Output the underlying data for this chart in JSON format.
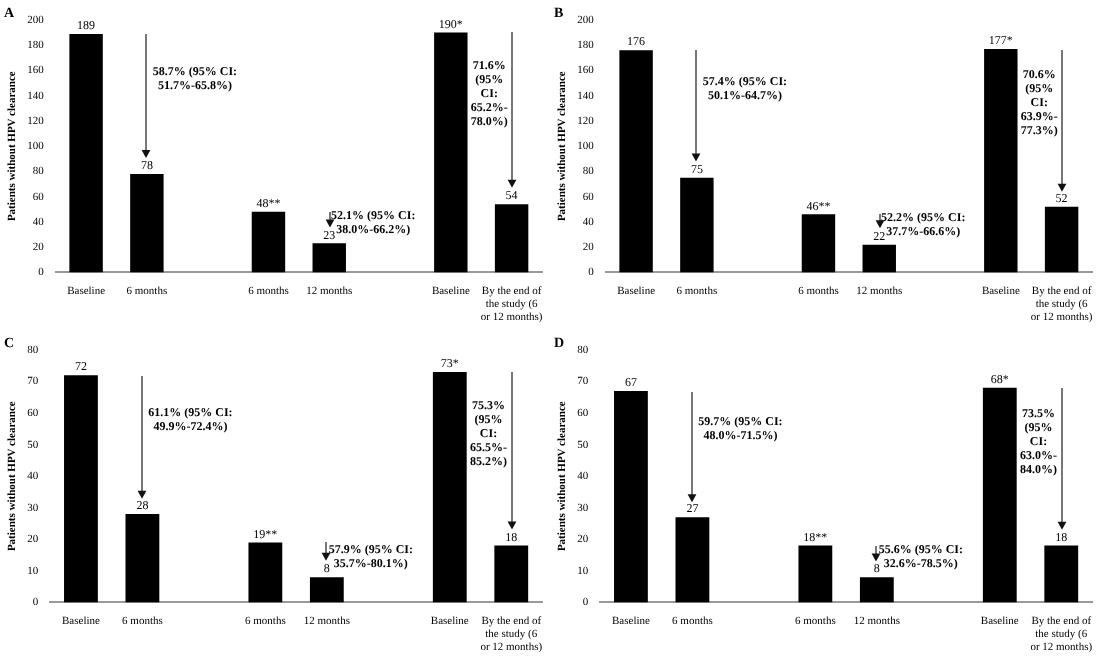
{
  "chart_data": [
    {
      "type": "bar",
      "title": "A",
      "ylabel": "Patients without HPV clearance",
      "categories": [
        "Baseline",
        "6 months",
        null,
        "6 months",
        "12 months",
        null,
        "Baseline",
        "By the end of the study (6 or 12 months)"
      ],
      "values": [
        189,
        78,
        null,
        48,
        23,
        null,
        190,
        54
      ],
      "value_labels": [
        "189",
        "78",
        null,
        "48**",
        "23",
        null,
        "190*",
        "54"
      ],
      "color": "#000000",
      "ylim": [
        0,
        200
      ],
      "yticks": [
        0,
        20,
        40,
        60,
        80,
        100,
        120,
        140,
        160,
        180,
        200
      ],
      "grid": false,
      "legend": false,
      "annotations": [
        "58.7% (95% CI: 51.7%-65.8%)",
        "52.1% (95% CI: 38.0%-66.2%)",
        "71.6% (95% CI: 65.2%-78.0%)"
      ]
    },
    {
      "type": "bar",
      "title": "B",
      "ylabel": "Patients without HPV clearance",
      "categories": [
        "Baseline",
        "6 months",
        null,
        "6 months",
        "12 months",
        null,
        "Baseline",
        "By the end of the study (6 or 12 months)"
      ],
      "values": [
        176,
        75,
        null,
        46,
        22,
        null,
        177,
        52
      ],
      "value_labels": [
        "176",
        "75",
        null,
        "46**",
        "22",
        null,
        "177*",
        "52"
      ],
      "color": "#000000",
      "ylim": [
        0,
        200
      ],
      "yticks": [
        0,
        20,
        40,
        60,
        80,
        100,
        120,
        140,
        160,
        180,
        200
      ],
      "grid": false,
      "legend": false,
      "annotations": [
        "57.4% (95% CI: 50.1%-64.7%)",
        "52.2% (95% CI: 37.7%-66.6%)",
        "70.6% (95% CI: 63.9%-77.3%)"
      ]
    },
    {
      "type": "bar",
      "title": "C",
      "ylabel": "Patients without HPV clearance",
      "categories": [
        "Baseline",
        "6 months",
        null,
        "6 months",
        "12 months",
        null,
        "Baseline",
        "By the end of the study (6 or 12 months)"
      ],
      "values": [
        72,
        28,
        null,
        19,
        8,
        null,
        73,
        18
      ],
      "value_labels": [
        "72",
        "28",
        null,
        "19**",
        "8",
        null,
        "73*",
        "18"
      ],
      "color": "#000000",
      "ylim": [
        0,
        80
      ],
      "yticks": [
        0,
        10,
        20,
        30,
        40,
        50,
        60,
        70,
        80
      ],
      "grid": false,
      "legend": false,
      "annotations": [
        "61.1% (95% CI: 49.9%-72.4%)",
        "57.9% (95% CI: 35.7%-80.1%)",
        "75.3% (95% CI: 65.5%-85.2%)"
      ]
    },
    {
      "type": "bar",
      "title": "D",
      "ylabel": "Patients without HPV clearance",
      "categories": [
        "Baseline",
        "6 months",
        null,
        "6 months",
        "12 months",
        null,
        "Baseline",
        "By the end of the study (6 or 12 months)"
      ],
      "values": [
        67,
        27,
        null,
        18,
        8,
        null,
        68,
        18
      ],
      "value_labels": [
        "67",
        "27",
        null,
        "18**",
        "8",
        null,
        "68*",
        "18"
      ],
      "color": "#000000",
      "ylim": [
        0,
        80
      ],
      "yticks": [
        0,
        10,
        20,
        30,
        40,
        50,
        60,
        70,
        80
      ],
      "grid": false,
      "legend": false,
      "annotations": [
        "59.7% (95% CI: 48.0%-71.5%)",
        "55.6% (95% CI: 32.6%-78.5%)",
        "73.5% (95% CI: 63.0%-84.0%)"
      ]
    }
  ]
}
